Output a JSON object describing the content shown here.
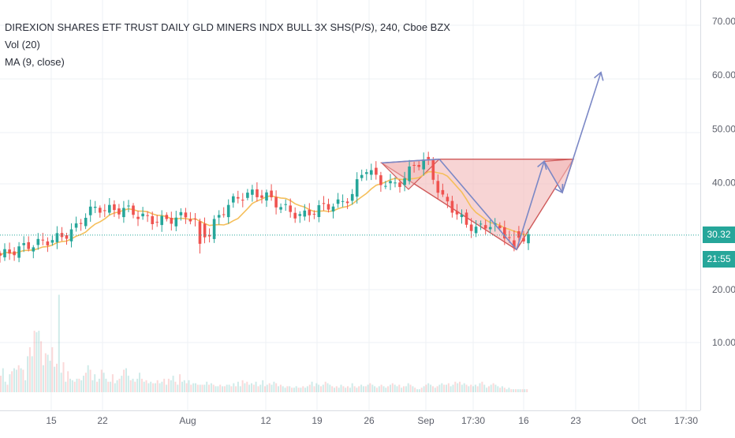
{
  "header": {
    "title": "DIREXION SHARES ETF TRUST DAILY GLD MINERS INDX BULL 3X SHS(P/S), 240, Cboe BZX",
    "volume_label": "Vol (20)",
    "ma_label": "MA (9, close)"
  },
  "price_axis": {
    "ticks": [
      "70.00",
      "60.00",
      "50.00",
      "40.00",
      "20.00",
      "10.00"
    ],
    "tick_values": [
      70,
      60,
      50,
      40,
      20,
      10
    ],
    "last_price": "30.32",
    "countdown": "21:55"
  },
  "time_axis": {
    "labels": [
      "15",
      "22",
      "Aug",
      "12",
      "19",
      "26",
      "Sep",
      "17:30",
      "16",
      "23",
      "Oct",
      "17:30"
    ]
  },
  "colors": {
    "up": "#26a69a",
    "down": "#ef5350",
    "ma": "#f5bf5b",
    "drawing": "#7b88c6",
    "pattern_fill": "#f2b8b8",
    "pattern_line": "#cf5a5a",
    "price_line": "#26a69a",
    "grid": "#eef0f4"
  },
  "chart_data": {
    "type": "candlestick",
    "title": "DIREXION SHARES ETF TRUST DAILY GLD MINERS INDX BULL 3X SHS(P/S), 240, Cboe BZX",
    "interval": "240",
    "y_range": [
      0,
      74
    ],
    "close_points": [
      [
        0,
        26.5
      ],
      [
        6,
        27.3
      ],
      [
        12,
        28.2
      ],
      [
        18,
        28.8
      ],
      [
        24,
        29.4
      ],
      [
        30,
        30.1
      ],
      [
        36,
        31.5
      ],
      [
        42,
        34.8
      ],
      [
        48,
        35.3
      ],
      [
        54,
        34.9
      ],
      [
        60,
        35.2
      ],
      [
        66,
        34.0
      ],
      [
        72,
        33.1
      ],
      [
        78,
        33.0
      ],
      [
        84,
        33.5
      ],
      [
        90,
        34.0
      ],
      [
        96,
        31.5
      ],
      [
        99,
        29.8
      ],
      [
        102,
        32.4
      ],
      [
        108,
        35.7
      ],
      [
        114,
        37.4
      ],
      [
        120,
        38.0
      ],
      [
        126,
        37.8
      ],
      [
        132,
        36.2
      ],
      [
        138,
        34.7
      ],
      [
        144,
        33.8
      ],
      [
        150,
        34.9
      ],
      [
        156,
        35.8
      ],
      [
        162,
        36.1
      ],
      [
        168,
        37.8
      ],
      [
        174,
        43.1
      ],
      [
        180,
        40.6
      ],
      [
        186,
        39.5
      ],
      [
        192,
        40.3
      ],
      [
        198,
        43.7
      ],
      [
        204,
        44.0
      ],
      [
        210,
        37.5
      ],
      [
        216,
        35.2
      ],
      [
        222,
        32.4
      ],
      [
        228,
        31.4
      ],
      [
        234,
        32.5
      ],
      [
        240,
        30.6
      ],
      [
        246,
        29.6
      ],
      [
        252,
        30.3
      ]
    ],
    "ma_period": 9,
    "volume_range": [
      0,
      100
    ],
    "volumes": [
      22,
      32,
      14,
      10,
      24,
      28,
      32,
      30,
      36,
      32,
      30,
      16,
      48,
      60,
      48,
      82,
      80,
      82,
      68,
      36,
      52,
      50,
      42,
      60,
      34,
      38,
      130,
      26,
      40,
      14,
      28,
      18,
      16,
      14,
      18,
      18,
      16,
      22,
      26,
      36,
      30,
      16,
      24,
      14,
      18,
      30,
      26,
      18,
      14,
      14,
      24,
      12,
      16,
      18,
      22,
      30,
      32,
      22,
      16,
      18,
      14,
      18,
      26,
      18,
      14,
      16,
      12,
      14,
      12,
      12,
      16,
      12,
      14,
      18,
      10,
      18,
      16,
      22,
      14,
      10,
      24,
      14,
      16,
      12,
      16,
      10,
      12,
      12,
      10,
      10,
      10,
      10,
      14,
      10,
      12,
      10,
      8,
      8,
      10,
      8,
      8,
      10,
      10,
      8,
      12,
      8,
      14,
      8,
      16,
      12,
      14,
      10,
      12,
      10,
      14,
      8,
      10,
      16,
      8,
      10,
      12,
      10,
      14,
      12,
      8,
      10,
      8,
      6,
      8,
      8,
      6,
      6,
      8,
      6,
      6,
      8,
      6,
      8,
      10,
      14,
      8,
      12,
      10,
      8,
      10,
      14,
      12,
      10,
      8,
      6,
      8,
      6,
      10,
      8,
      6,
      8,
      6,
      12,
      8,
      6,
      8,
      10,
      8,
      8,
      10,
      12,
      10,
      8,
      6,
      8,
      10,
      8,
      6,
      8,
      10,
      12,
      10,
      8,
      10,
      6,
      8,
      8,
      12,
      10,
      8,
      6,
      4,
      4,
      6,
      8,
      10,
      12,
      10,
      8,
      6,
      8,
      10,
      12,
      10,
      10,
      12,
      8,
      10,
      14,
      12,
      14,
      10,
      12,
      10,
      8,
      10,
      8,
      10,
      8,
      12,
      14,
      10,
      6,
      8,
      10,
      12,
      10,
      8,
      6,
      8,
      6,
      4,
      6,
      4,
      4,
      4,
      4,
      4,
      4,
      4,
      4
    ],
    "cup_and_handle": {
      "left_rim": 43.7,
      "right_rim": 44.4,
      "bottom": 27.6,
      "handle_high": 44.0,
      "handle_low": 38.2,
      "target": 60.5
    }
  }
}
